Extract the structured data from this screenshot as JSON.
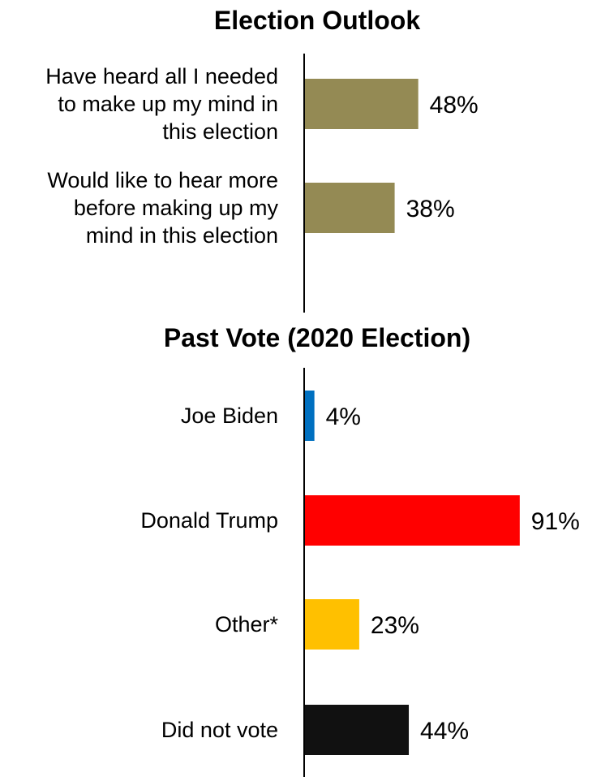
{
  "chart_data": [
    {
      "type": "bar",
      "orientation": "horizontal",
      "title": "Election Outlook",
      "categories": [
        "Have heard all I needed to make up my mind in this election",
        "Would like to hear more before making up my mind in this election"
      ],
      "category_lines": [
        [
          "Have heard all I needed",
          "to make up my mind in",
          "this election"
        ],
        [
          "Would like to hear more",
          "before making up my",
          "mind in this election"
        ]
      ],
      "values": [
        48,
        38
      ],
      "value_labels": [
        "48%",
        "38%"
      ],
      "colors": [
        "#948A54",
        "#948A54"
      ],
      "xlim": [
        0,
        100
      ],
      "grid": false,
      "legend": "none"
    },
    {
      "type": "bar",
      "orientation": "horizontal",
      "title": "Past Vote (2020 Election)",
      "categories": [
        "Joe Biden",
        "Donald Trump",
        "Other*",
        "Did not vote"
      ],
      "category_lines": [
        [
          "Joe Biden"
        ],
        [
          "Donald Trump"
        ],
        [
          "Other*"
        ],
        [
          "Did not vote"
        ]
      ],
      "values": [
        4,
        91,
        23,
        44
      ],
      "value_labels": [
        "4%",
        "91%",
        "23%",
        "44%"
      ],
      "colors": [
        "#0070C0",
        "#FF0000",
        "#FFC000",
        "#111111"
      ],
      "xlim": [
        0,
        100
      ],
      "grid": false,
      "legend": "none"
    }
  ]
}
